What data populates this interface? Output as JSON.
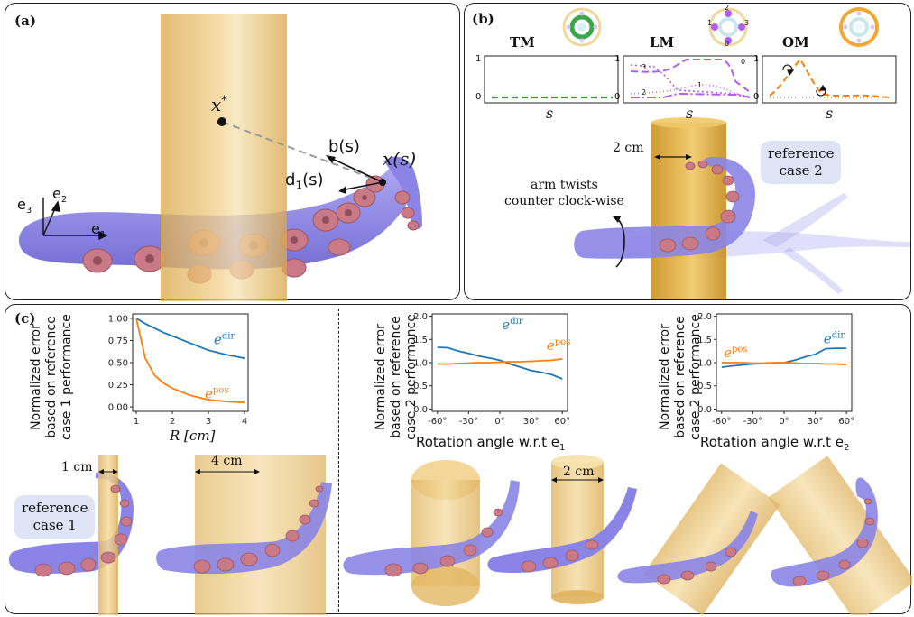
{
  "panel_a": {
    "label": "(a)",
    "target_point": "x",
    "target_sup": "*",
    "b_label": "b(s)",
    "d1_label": "d",
    "d1_sub": "1",
    "d1_arg": "(s)",
    "xs_label": "x(s)",
    "axes": {
      "e3": "e",
      "e3_sub": "3",
      "e2": "e",
      "e2_sub": "2",
      "e1": "e",
      "e1_sub": "1"
    }
  },
  "panel_b": {
    "label": "(b)",
    "modes": [
      {
        "title": "TM",
        "xlabel": "s"
      },
      {
        "title": "LM",
        "xlabel": "s"
      },
      {
        "title": "OM",
        "xlabel": "s"
      }
    ],
    "tick_1": "1",
    "tick_0": "0",
    "lm_curve_labels": [
      "3",
      "0",
      "1",
      "2"
    ],
    "lm_icon_numbers": [
      "2",
      "1",
      "3",
      "0"
    ],
    "width_label": "2 cm",
    "twist_text": "arm twists\ncounter clock-wise",
    "ref_box": "reference\ncase 2"
  },
  "panel_c": {
    "label": "(c)",
    "chart1_ylabel": "Normalized error\nbased on reference\ncase 1 performance",
    "chart2_ylabel": "Normalized error\nbased on reference\ncase 2 performance",
    "chart3_ylabel": "Normalized error\nbased on reference\ncase 2 performance",
    "ref_box": "reference\ncase 1",
    "width_1cm": "1 cm",
    "width_4cm": "4 cm",
    "width_2cm": "2 cm"
  },
  "colors": {
    "dir": "#1f77b4",
    "pos": "#ff7f0e",
    "tm": "#2ca02c",
    "lm": "#b35cf0",
    "om": "#ff7f0e",
    "arm": "#8a84e6",
    "sucker": "#c97a86",
    "cylinder": "#e8b860",
    "refbox": "#dce4f5"
  },
  "chart_data": [
    {
      "type": "line",
      "title": "",
      "xlabel": "R [cm]",
      "ylabel": "Normalized error based on reference case 1 performance",
      "xlim": [
        0.9,
        4.1
      ],
      "ylim": [
        -0.05,
        1.05
      ],
      "xticks": [
        "1",
        "2",
        "3",
        "4"
      ],
      "yticks": [
        "0.00",
        "0.25",
        "0.50",
        "0.75",
        "1.00"
      ],
      "x": [
        1.0,
        1.25,
        1.5,
        1.75,
        2.0,
        2.5,
        3.0,
        3.5,
        4.0
      ],
      "series": [
        {
          "name": "e^dir",
          "color": "#1f77b4",
          "values": [
            1.0,
            0.94,
            0.89,
            0.84,
            0.8,
            0.72,
            0.64,
            0.59,
            0.55
          ]
        },
        {
          "name": "e^pos",
          "color": "#ff7f0e",
          "values": [
            1.0,
            0.55,
            0.36,
            0.27,
            0.21,
            0.13,
            0.08,
            0.06,
            0.05
          ]
        }
      ],
      "series_labels": [
        {
          "text": "e",
          "sup": "dir"
        },
        {
          "text": "e",
          "sup": "pos"
        }
      ]
    },
    {
      "type": "line",
      "title": "",
      "xlabel": "Rotation angle w.r.t e1",
      "xlabel_main": "Rotation angle w.r.t e",
      "xlabel_sub": "1",
      "ylabel": "Normalized error based on reference case 2 performance",
      "xlim": [
        -65,
        65
      ],
      "ylim": [
        -0.05,
        2.05
      ],
      "xticks": [
        "-60°",
        "-30°",
        "0°",
        "30°",
        "60°"
      ],
      "yticks": [
        "0.0",
        "0.5",
        "1.0",
        "1.5",
        "2.0"
      ],
      "x": [
        -60,
        -50,
        -40,
        -30,
        -20,
        -10,
        0,
        10,
        20,
        30,
        40,
        50,
        60
      ],
      "series": [
        {
          "name": "e^dir",
          "color": "#1f77b4",
          "values": [
            1.33,
            1.32,
            1.25,
            1.2,
            1.14,
            1.1,
            1.05,
            0.97,
            0.9,
            0.83,
            0.79,
            0.74,
            0.65
          ]
        },
        {
          "name": "e^pos",
          "color": "#ff7f0e",
          "values": [
            0.97,
            0.97,
            0.98,
            0.99,
            1.0,
            1.0,
            1.01,
            1.02,
            1.02,
            1.03,
            1.04,
            1.05,
            1.08
          ]
        }
      ],
      "series_labels": [
        {
          "text": "e",
          "sup": "dir"
        },
        {
          "text": "e",
          "sup": "pos"
        }
      ]
    },
    {
      "type": "line",
      "title": "",
      "xlabel": "Rotation angle w.r.t e2",
      "xlabel_main": "Rotation angle w.r.t e",
      "xlabel_sub": "2",
      "ylabel": "Normalized error based on reference case 2 performance",
      "xlim": [
        -65,
        65
      ],
      "ylim": [
        -0.05,
        2.05
      ],
      "xticks": [
        "-60°",
        "-30°",
        "0°",
        "30°",
        "60°"
      ],
      "yticks": [
        "0.0",
        "0.5",
        "1.0",
        "1.5",
        "2.0"
      ],
      "x": [
        -60,
        -50,
        -40,
        -30,
        -20,
        -10,
        0,
        10,
        20,
        30,
        40,
        50,
        60
      ],
      "series": [
        {
          "name": "e^dir",
          "color": "#1f77b4",
          "values": [
            0.9,
            0.93,
            0.95,
            0.97,
            0.98,
            0.99,
            1.0,
            1.05,
            1.12,
            1.18,
            1.3,
            1.31,
            1.31
          ]
        },
        {
          "name": "e^pos",
          "color": "#ff7f0e",
          "values": [
            1.0,
            1.0,
            1.0,
            0.99,
            0.99,
            1.0,
            1.0,
            0.99,
            0.98,
            0.98,
            0.97,
            0.97,
            0.96
          ]
        }
      ],
      "series_labels": [
        {
          "text": "e",
          "sup": "dir"
        },
        {
          "text": "e",
          "sup": "pos"
        }
      ]
    }
  ]
}
